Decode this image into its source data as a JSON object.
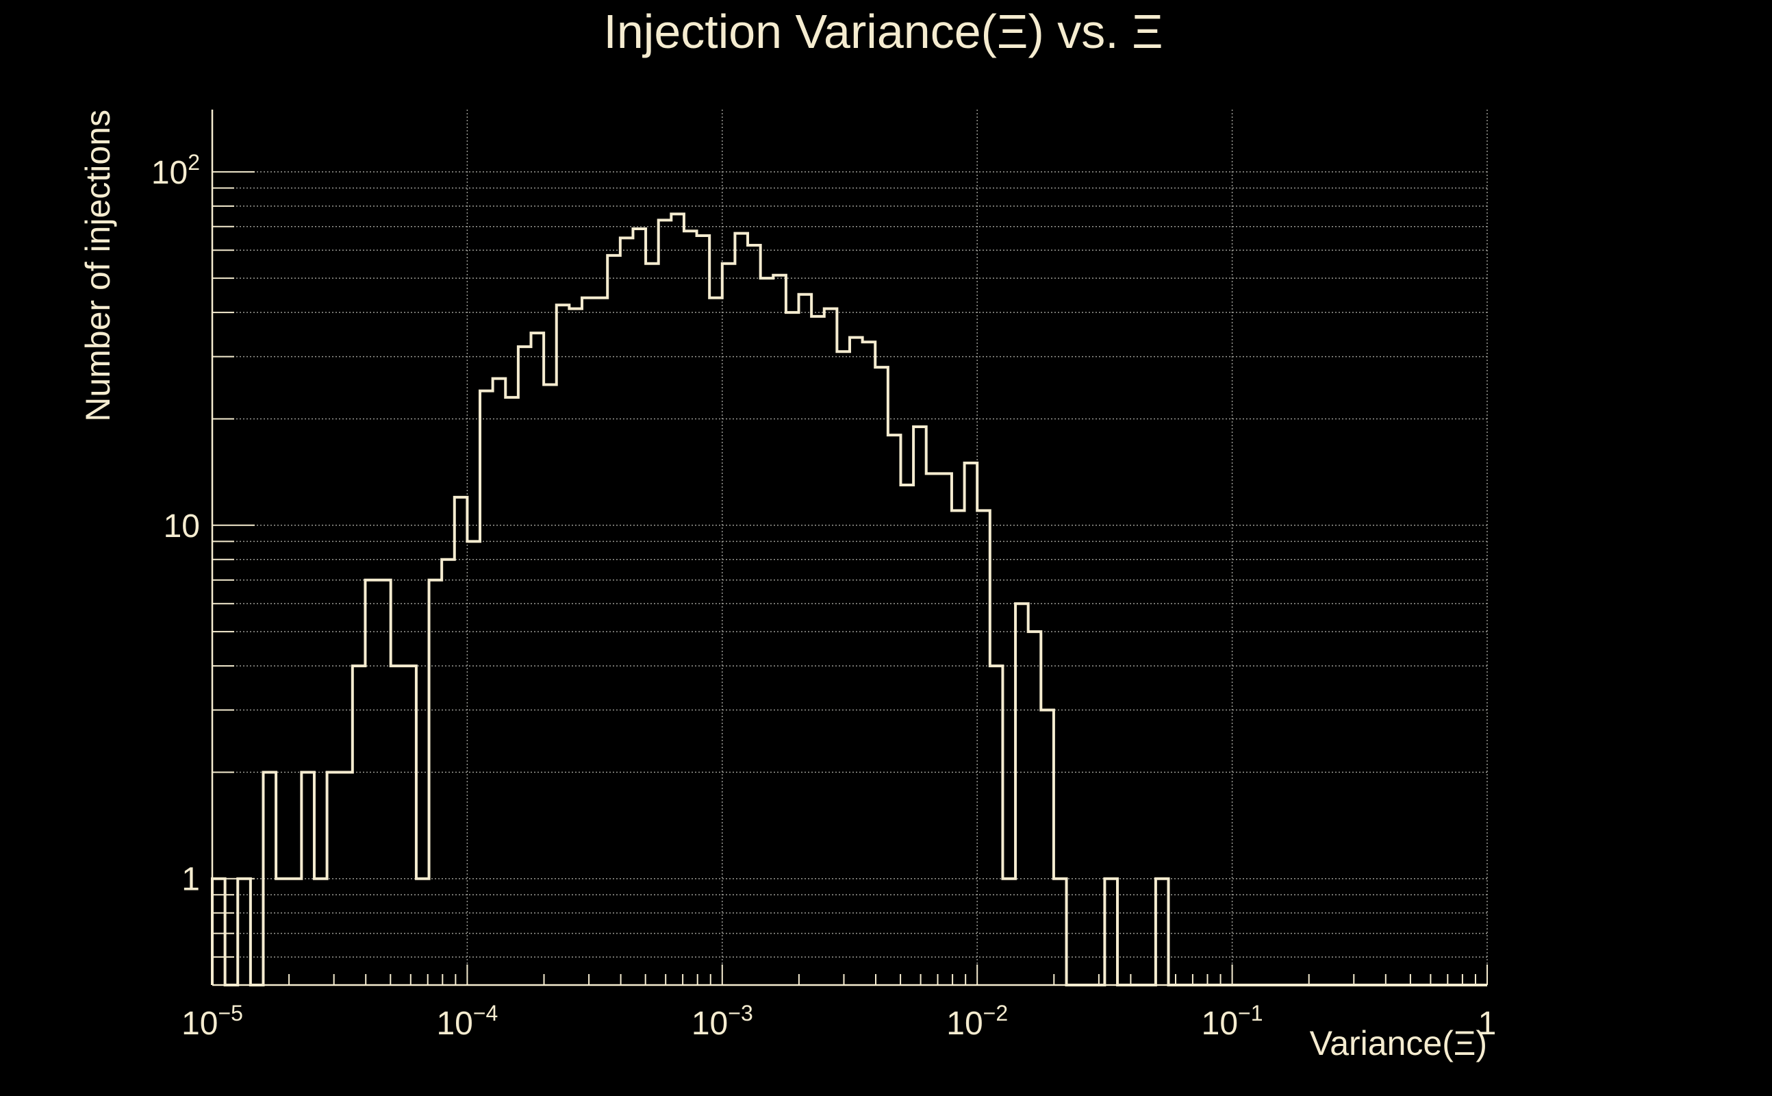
{
  "colors": {
    "background": "#000000",
    "foreground": "#f5ecd0",
    "grid": "#9a9a94"
  },
  "chart_data": {
    "type": "histogram",
    "title": "Injection Variance(Ξ) vs. Ξ",
    "xlabel": "Variance(Ξ)",
    "ylabel": "Number of injections",
    "x_scale": "log",
    "y_scale": "log",
    "xlim": [
      1e-05,
      1
    ],
    "ylim": [
      0.5,
      150
    ],
    "grid": true,
    "x_tick_labels": [
      {
        "base": "10",
        "exp": "−5",
        "value": 1e-05
      },
      {
        "base": "10",
        "exp": "−4",
        "value": 0.0001
      },
      {
        "base": "10",
        "exp": "−3",
        "value": 0.001
      },
      {
        "base": "10",
        "exp": "−2",
        "value": 0.01
      },
      {
        "base": "10",
        "exp": "−1",
        "value": 0.1
      },
      {
        "base": "1",
        "exp": "",
        "value": 1
      }
    ],
    "y_tick_labels": [
      {
        "base": "1",
        "exp": "",
        "value": 1
      },
      {
        "base": "10",
        "exp": "",
        "value": 10
      },
      {
        "base": "10",
        "exp": "2",
        "value": 100
      }
    ],
    "bins_per_decade": 20,
    "series": [
      {
        "values": [
          1,
          0,
          1,
          0,
          2,
          1,
          1,
          2,
          1,
          2,
          2,
          4,
          7,
          7,
          4,
          4,
          1,
          7,
          8,
          12,
          9,
          24,
          26,
          23,
          32,
          35,
          25,
          42,
          41,
          44,
          44,
          58,
          65,
          69,
          55,
          73,
          76,
          68,
          66,
          44,
          55,
          67,
          62,
          50,
          51,
          40,
          45,
          39,
          41,
          31,
          34,
          33,
          28,
          18,
          13,
          19,
          14,
          14,
          11,
          15,
          11,
          4,
          1,
          6,
          5,
          3,
          1,
          0,
          0,
          0,
          1,
          0,
          0,
          0,
          1,
          0,
          0,
          0,
          0,
          0,
          0,
          0,
          0,
          0,
          0,
          0,
          0,
          0,
          0,
          0,
          0,
          0,
          0,
          0,
          0,
          0,
          0,
          0,
          0,
          0
        ]
      }
    ]
  }
}
